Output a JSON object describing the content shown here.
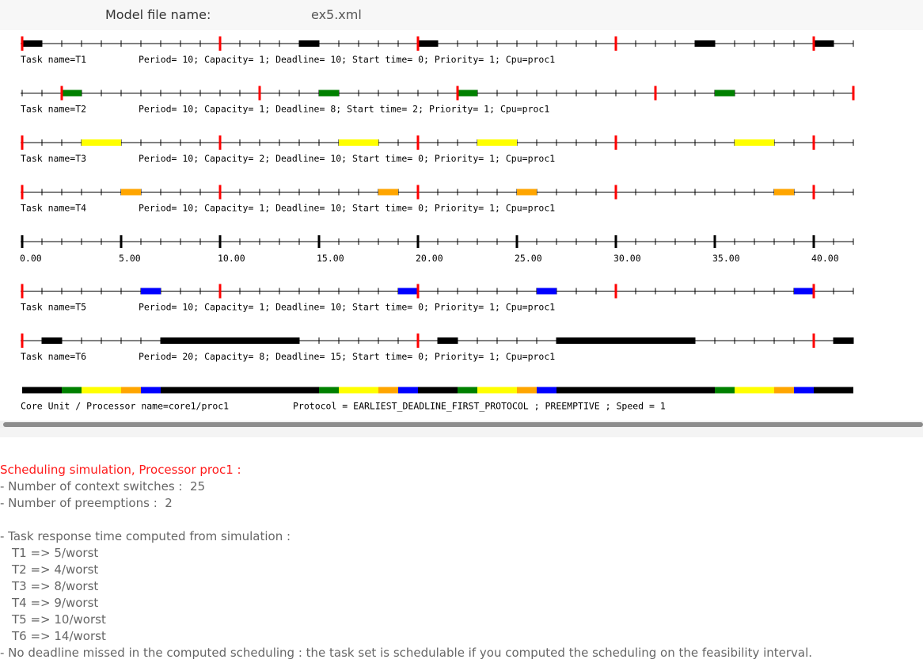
{
  "header": {
    "model_label": "Model file name:",
    "model_value": "ex5.xml"
  },
  "colors": {
    "red_mark": "#ff0000",
    "black": "#000000",
    "green": "#008000",
    "yellow": "#ffff00",
    "orange": "#ffa500",
    "blue": "#0000ff"
  },
  "chart_data": {
    "type": "gantt",
    "x_range": [
      0,
      42
    ],
    "ticks": [
      "0.00",
      "5.00",
      "10.00",
      "15.00",
      "20.00",
      "25.00",
      "30.00",
      "35.00",
      "40.00"
    ],
    "tasks": [
      {
        "label": "Task name=T1",
        "params": "Period= 10; Capacity= 1; Deadline= 10; Start time= 0; Priority= 1; Cpu=proc1",
        "color": "#000000",
        "marks": [
          0,
          10,
          20,
          30,
          40
        ],
        "blocks": [
          [
            0,
            1
          ],
          [
            14,
            15
          ],
          [
            20,
            21
          ],
          [
            34,
            35
          ],
          [
            40,
            41
          ]
        ]
      },
      {
        "label": "Task name=T2",
        "params": "Period= 10; Capacity= 1; Deadline= 8; Start time= 2; Priority= 1; Cpu=proc1",
        "color": "#008000",
        "marks": [
          2,
          12,
          22,
          32,
          42
        ],
        "blocks": [
          [
            2,
            3
          ],
          [
            15,
            16
          ],
          [
            22,
            23
          ],
          [
            35,
            36
          ]
        ]
      },
      {
        "label": "Task name=T3",
        "params": "Period= 10; Capacity= 2; Deadline= 10; Start time= 0; Priority= 1; Cpu=proc1",
        "color": "#ffff00",
        "marks": [
          0,
          10,
          20,
          30,
          40
        ],
        "blocks": [
          [
            3,
            5
          ],
          [
            16,
            18
          ],
          [
            23,
            25
          ],
          [
            36,
            38
          ]
        ]
      },
      {
        "label": "Task name=T4",
        "params": "Period= 10; Capacity= 1; Deadline= 10; Start time= 0; Priority= 1; Cpu=proc1",
        "color": "#ffa500",
        "marks": [
          0,
          10,
          20,
          30,
          40
        ],
        "blocks": [
          [
            5,
            6
          ],
          [
            18,
            19
          ],
          [
            25,
            26
          ],
          [
            38,
            39
          ]
        ]
      },
      {
        "label": "",
        "params": "",
        "axis": true
      },
      {
        "label": "Task name=T5",
        "params": "Period= 10; Capacity= 1; Deadline= 10; Start time= 0; Priority= 1; Cpu=proc1",
        "color": "#0000ff",
        "marks": [
          0,
          10,
          20,
          30,
          40
        ],
        "blocks": [
          [
            6,
            7
          ],
          [
            19,
            20
          ],
          [
            26,
            27
          ],
          [
            39,
            40
          ]
        ]
      },
      {
        "label": "Task name=T6",
        "params": "Period= 20; Capacity= 8; Deadline= 15; Start time= 0; Priority= 1; Cpu=proc1",
        "color": "#000000",
        "marks": [
          0,
          20,
          40
        ],
        "blocks": [
          [
            1,
            2
          ],
          [
            7,
            14
          ],
          [
            21,
            22
          ],
          [
            27,
            34
          ],
          [
            41,
            42
          ]
        ]
      }
    ],
    "processor": {
      "label": "Core Unit / Processor name=core1/proc1",
      "protocol": "Protocol = EARLIEST_DEADLINE_FIRST_PROTOCOL ; PREEMPTIVE ; Speed =  1",
      "segments": [
        [
          0,
          2,
          "#000000"
        ],
        [
          2,
          3,
          "#008000"
        ],
        [
          3,
          5,
          "#ffff00"
        ],
        [
          5,
          6,
          "#ffa500"
        ],
        [
          6,
          7,
          "#0000ff"
        ],
        [
          7,
          15,
          "#000000"
        ],
        [
          15,
          16,
          "#008000"
        ],
        [
          16,
          18,
          "#ffff00"
        ],
        [
          18,
          19,
          "#ffa500"
        ],
        [
          19,
          20,
          "#0000ff"
        ],
        [
          20,
          22,
          "#000000"
        ],
        [
          22,
          23,
          "#008000"
        ],
        [
          23,
          25,
          "#ffff00"
        ],
        [
          25,
          26,
          "#ffa500"
        ],
        [
          26,
          27,
          "#0000ff"
        ],
        [
          27,
          35,
          "#000000"
        ],
        [
          35,
          36,
          "#008000"
        ],
        [
          36,
          38,
          "#ffff00"
        ],
        [
          38,
          39,
          "#ffa500"
        ],
        [
          39,
          40,
          "#0000ff"
        ],
        [
          40,
          42,
          "#000000"
        ]
      ]
    }
  },
  "report": {
    "title": "Scheduling simulation, Processor proc1 :",
    "context_switches": "- Number of context switches :  25",
    "preemptions": "- Number of preemptions :  2",
    "response_header": "- Task response time computed from simulation :",
    "responses": [
      "T1 => 5/worst",
      "T2 => 4/worst",
      "T3 => 8/worst",
      "T4 => 9/worst",
      "T5 => 10/worst",
      "T6 => 14/worst"
    ],
    "conclusion": "- No deadline missed in the computed scheduling : the task set is schedulable if you computed the scheduling on the feasibility interval."
  }
}
